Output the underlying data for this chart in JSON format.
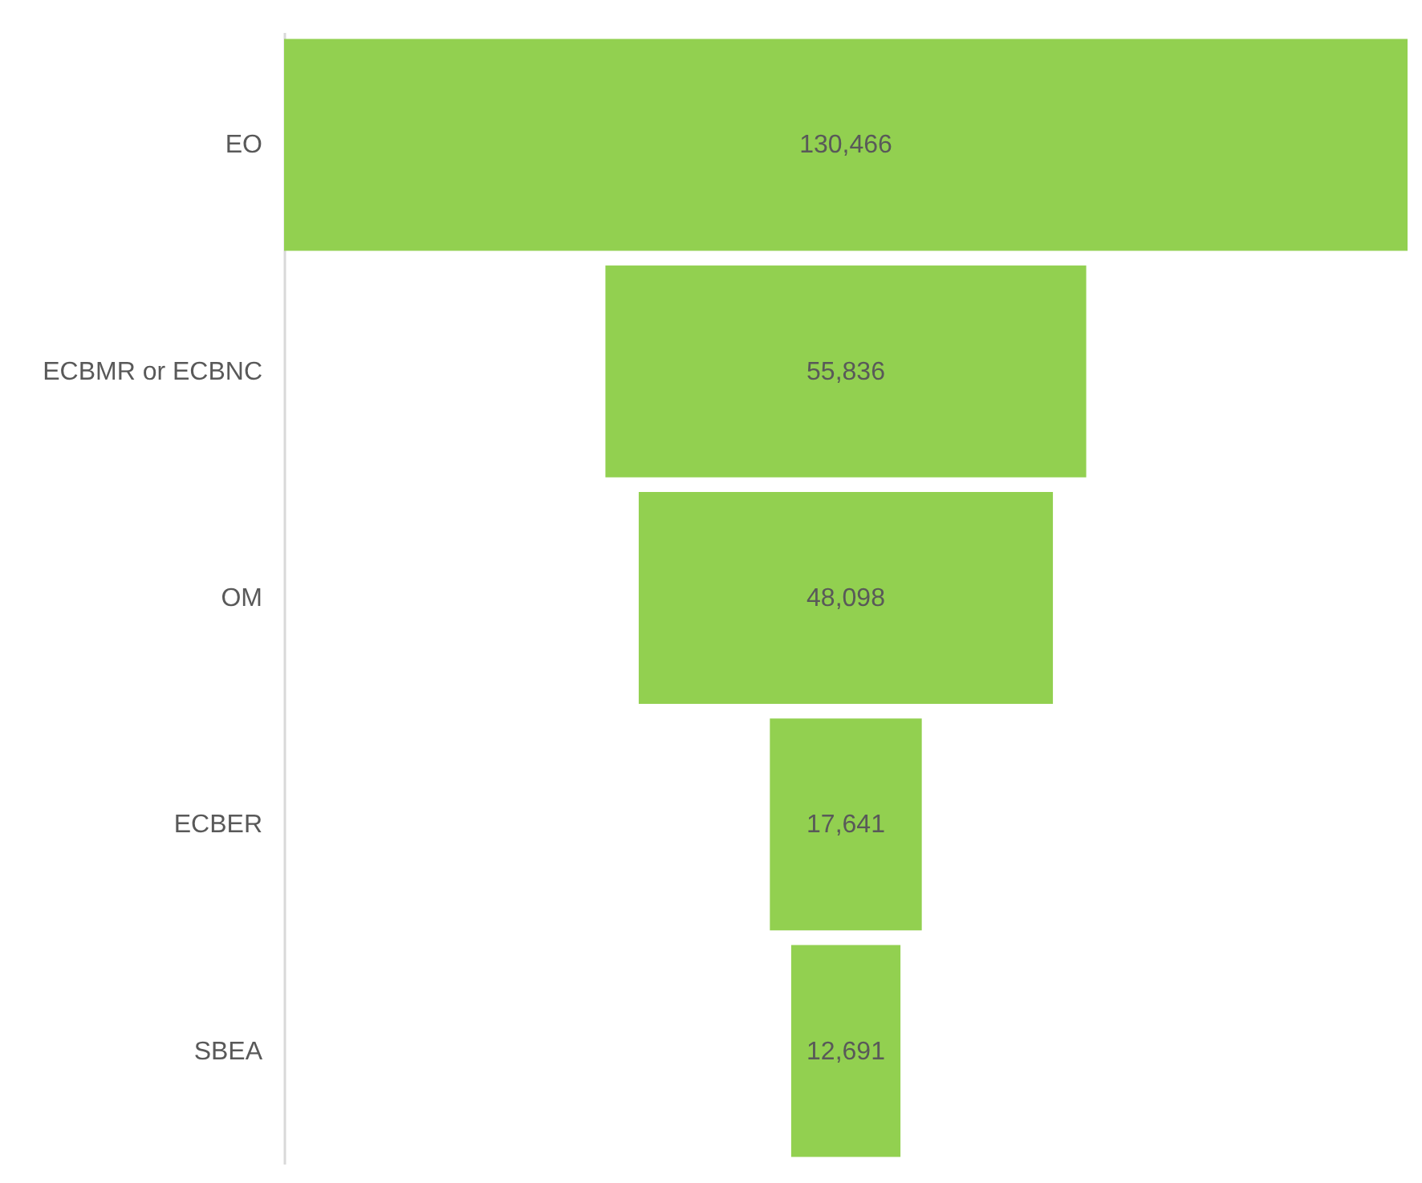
{
  "chart_data": {
    "type": "other",
    "categories": [
      "EO",
      "ECBMR or ECBNC",
      "OM",
      "ECBER",
      "SBEA"
    ],
    "values": [
      130466,
      55836,
      48098,
      17641,
      12691
    ],
    "value_labels": [
      "130,466",
      "55,836",
      "48,098",
      "17,641",
      "12,691"
    ],
    "color": "#92d050"
  }
}
